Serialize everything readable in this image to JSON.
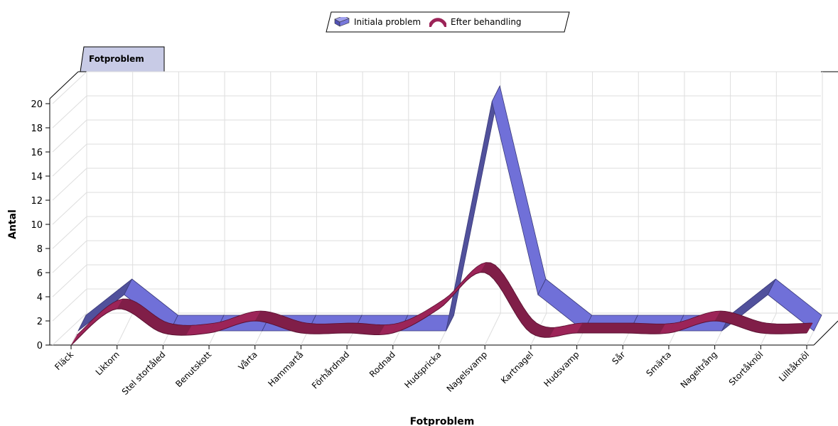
{
  "legend": {
    "items": [
      {
        "label": "Initiala problem",
        "icon": "ribbon-swatch-icon",
        "color": "#7070d8"
      },
      {
        "label": "Efter behandling",
        "icon": "curve-swatch-icon",
        "color": "#9c2458"
      }
    ]
  },
  "tab": {
    "label": "Fotproblem"
  },
  "chart_data": {
    "type": "area",
    "style": "3d-ribbon",
    "xlabel": "Fotproblem",
    "ylabel": "Antal",
    "ylim": [
      0,
      20
    ],
    "yticks": [
      0,
      2,
      4,
      6,
      8,
      10,
      12,
      14,
      16,
      18,
      20
    ],
    "grid": true,
    "legend_position": "top-center",
    "categories": [
      "Fläck",
      "Liktorn",
      "Stel  stortåled",
      "Benutskott",
      "Vårta",
      "Hammartå",
      "Förhårdnad",
      "Rodnad",
      "Hudspricka",
      "Nagelsvamp",
      "Kartnagel",
      "Hudsvamp",
      "Sår",
      "Smärta",
      "Nageltrång",
      "Stortåknöl",
      "Lilltåknöl"
    ],
    "series": [
      {
        "name": "Initiala problem",
        "shape": "linear",
        "color": "#7070d8",
        "values": [
          0,
          3,
          0,
          0,
          0,
          0,
          0,
          0,
          0,
          19,
          3,
          0,
          0,
          0,
          0,
          3,
          0
        ]
      },
      {
        "name": "Efter behandling",
        "shape": "smooth",
        "color": "#9c2458",
        "values": [
          0,
          3,
          1,
          1,
          2,
          1,
          1,
          1,
          3,
          6,
          1,
          1,
          1,
          1,
          2,
          1,
          1
        ]
      }
    ]
  }
}
